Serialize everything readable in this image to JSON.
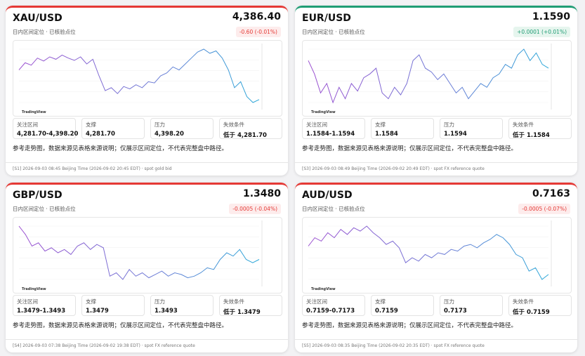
{
  "cards": [
    {
      "pair": "XAU/USD",
      "price": "4,386.40",
      "subtitle": "日内区间定位 · 已核验点位",
      "change": "-0.60 (-0.01%)",
      "accent": "#e53935",
      "badge_bg": "#fdecec",
      "chart": {
        "watermark": "TradingView",
        "values": [
          4340,
          4352,
          4348,
          4360,
          4355,
          4362,
          4358,
          4365,
          4360,
          4356,
          4362,
          4350,
          4358,
          4330,
          4305,
          4310,
          4300,
          4312,
          4308,
          4315,
          4310,
          4320,
          4318,
          4330,
          4335,
          4345,
          4340,
          4350,
          4360,
          4370,
          4375,
          4368,
          4372,
          4360,
          4340,
          4310,
          4320,
          4295,
          4285,
          4290
        ]
      },
      "levels": [
        {
          "label": "关注区间",
          "value": "4,281.70-4,398.20"
        },
        {
          "label": "支撑",
          "value": "4,281.70"
        },
        {
          "label": "压力",
          "value": "4,398.20"
        },
        {
          "label": "失效条件",
          "value": "低于 4,281.70"
        }
      ],
      "note": "参考走势图，数据来源见表格来源说明；仅展示区间定位，不代表完整盘中路径。",
      "footer": "[S1] 2026-09-03 08:45 Beijing Time (2026-09-02 20:45 EDT) · spot gold bid"
    },
    {
      "pair": "EUR/USD",
      "price": "1.1590",
      "subtitle": "日内区间定位 · 已核验点位",
      "change": "+0.0001 (+0.01%)",
      "accent": "#1f9d74",
      "badge_bg": "#e6f5ee",
      "chart": {
        "watermark": "TradingView",
        "values": [
          1.1592,
          1.1585,
          1.1575,
          1.158,
          1.157,
          1.1578,
          1.1572,
          1.158,
          1.1576,
          1.1583,
          1.1585,
          1.1588,
          1.1575,
          1.1572,
          1.1578,
          1.1574,
          1.158,
          1.1592,
          1.1595,
          1.1588,
          1.1586,
          1.1582,
          1.1585,
          1.158,
          1.1575,
          1.1578,
          1.1572,
          1.1576,
          1.158,
          1.1578,
          1.1583,
          1.1585,
          1.159,
          1.1588,
          1.1595,
          1.1598,
          1.1592,
          1.1596,
          1.159,
          1.1588
        ]
      },
      "levels": [
        {
          "label": "关注区间",
          "value": "1.1584-1.1594"
        },
        {
          "label": "支撑",
          "value": "1.1584"
        },
        {
          "label": "压力",
          "value": "1.1594"
        },
        {
          "label": "失效条件",
          "value": "低于 1.1584"
        }
      ],
      "note": "参考走势图，数据来源见表格来源说明；仅展示区间定位，不代表完整盘中路径。",
      "footer": "[S3] 2026-09-03 08:49 Beijing Time (2026-09-02 20:49 EDT) · spot FX reference quote"
    },
    {
      "pair": "GBP/USD",
      "price": "1.3480",
      "subtitle": "日内区间定位 · 已核验点位",
      "change": "-0.0005 (-0.04%)",
      "accent": "#e53935",
      "badge_bg": "#fdecec",
      "chart": {
        "watermark": "TradingView",
        "values": [
          1.35,
          1.3495,
          1.3488,
          1.349,
          1.3485,
          1.3487,
          1.3484,
          1.3486,
          1.3483,
          1.3488,
          1.349,
          1.3486,
          1.3489,
          1.3487,
          1.347,
          1.3472,
          1.3468,
          1.3474,
          1.347,
          1.3472,
          1.3469,
          1.3471,
          1.3473,
          1.347,
          1.3472,
          1.3471,
          1.3469,
          1.347,
          1.3472,
          1.3475,
          1.3474,
          1.348,
          1.3484,
          1.3482,
          1.3486,
          1.348,
          1.3478,
          1.348
        ]
      },
      "levels": [
        {
          "label": "关注区间",
          "value": "1.3479-1.3493"
        },
        {
          "label": "支撑",
          "value": "1.3479"
        },
        {
          "label": "压力",
          "value": "1.3493"
        },
        {
          "label": "失效条件",
          "value": "低于 1.3479"
        }
      ],
      "note": "参考走势图，数据来源见表格来源说明；仅展示区间定位，不代表完整盘中路径。",
      "footer": "[S4] 2026-09-03 07:38 Beijing Time (2026-09-02 19:38 EDT) · spot FX reference quote"
    },
    {
      "pair": "AUD/USD",
      "price": "0.7163",
      "subtitle": "日内区间定位 · 已核验点位",
      "change": "-0.0005 (-0.07%)",
      "accent": "#e53935",
      "badge_bg": "#fdecec",
      "chart": {
        "watermark": "TradingView",
        "values": [
          0.7175,
          0.718,
          0.7178,
          0.7183,
          0.718,
          0.7185,
          0.7182,
          0.7186,
          0.7184,
          0.7187,
          0.7183,
          0.718,
          0.7176,
          0.7178,
          0.7174,
          0.7165,
          0.7168,
          0.7166,
          0.717,
          0.7168,
          0.7171,
          0.717,
          0.7173,
          0.7172,
          0.7175,
          0.7176,
          0.7174,
          0.7177,
          0.7179,
          0.7182,
          0.718,
          0.7176,
          0.717,
          0.7168,
          0.716,
          0.7162,
          0.7155,
          0.7158
        ]
      },
      "levels": [
        {
          "label": "关注区间",
          "value": "0.7159-0.7173"
        },
        {
          "label": "支撑",
          "value": "0.7159"
        },
        {
          "label": "压力",
          "value": "0.7173"
        },
        {
          "label": "失效条件",
          "value": "低于 0.7159"
        }
      ],
      "note": "参考走势图，数据来源见表格来源说明；仅展示区间定位，不代表完整盘中路径。",
      "footer": "[S5] 2026-09-03 08:35 Beijing Time (2026-09-02 20:35 EDT) · spot FX reference quote"
    }
  ]
}
